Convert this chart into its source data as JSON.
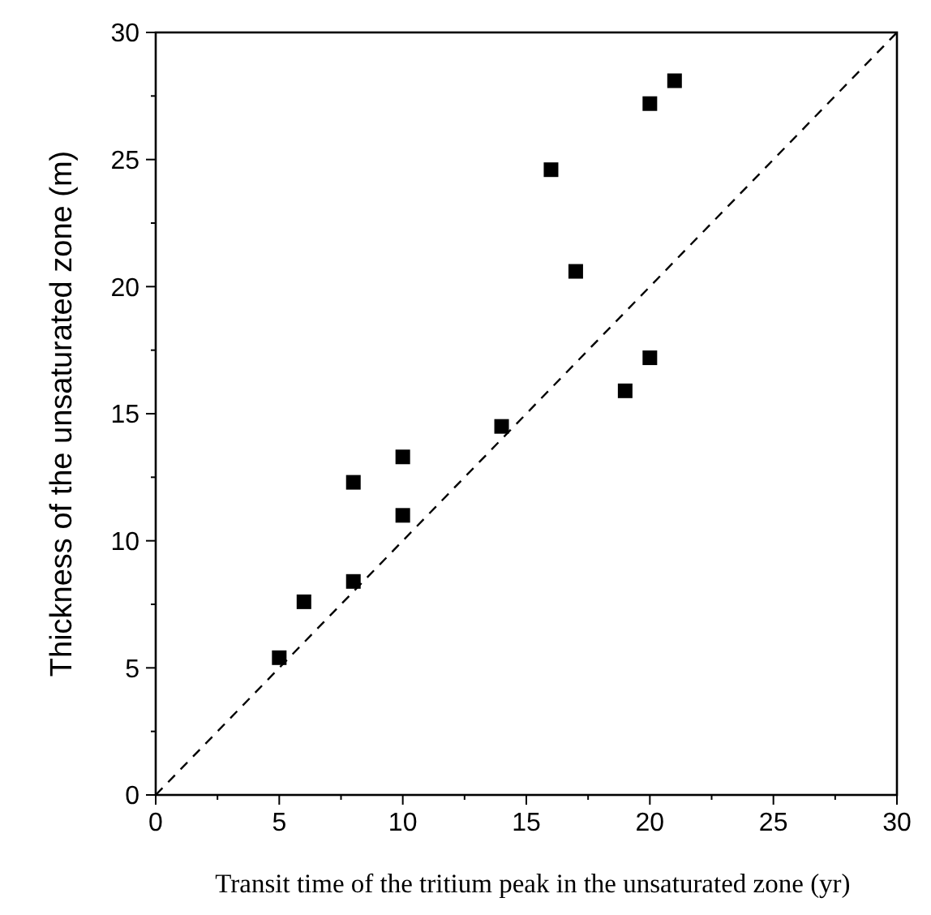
{
  "chart_data": {
    "type": "scatter",
    "xlabel": "Transit time of the tritium peak in the unsaturated zone (yr)",
    "ylabel": "Thickness of the unsaturated zone (m)",
    "x": [
      5,
      6,
      8,
      8,
      10,
      10,
      14,
      16,
      17,
      19,
      20,
      20,
      21
    ],
    "series": [
      {
        "color": "#000000",
        "values": [
          5.4,
          7.6,
          8.4,
          12.3,
          11,
          13.3,
          14.5,
          24.6,
          20.6,
          15.9,
          17.2,
          27.2,
          28.1
        ]
      },
      {
        "type": "line",
        "color": "#000000",
        "line_style": "dashed",
        "marker": "none",
        "x": [
          0,
          30
        ],
        "values": [
          0,
          30
        ]
      }
    ],
    "marker": "square",
    "xlim": [
      0,
      30
    ],
    "ylim": [
      0,
      30
    ],
    "xticks": [
      0,
      5,
      10,
      15,
      20,
      25,
      30
    ],
    "yticks": [
      0,
      5,
      10,
      15,
      20,
      25,
      30
    ],
    "grid": false
  }
}
